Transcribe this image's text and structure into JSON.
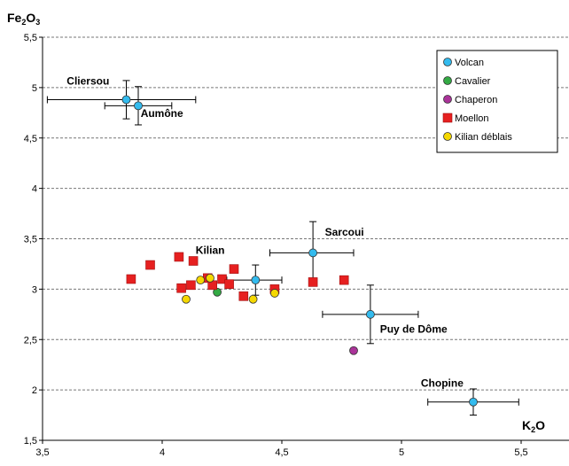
{
  "chart_data": {
    "type": "scatter",
    "xlabel": "K2O",
    "ylabel": "Fe2O3",
    "xlabel_main": "K",
    "xlabel_sub": "2",
    "xlabel_end": "O",
    "ylabel_main": "Fe",
    "ylabel_sub1": "2",
    "ylabel_mid": "O",
    "ylabel_sub2": "3",
    "xlim": [
      3.5,
      5.7
    ],
    "ylim": [
      1.5,
      5.5
    ],
    "xticks": [
      "3,5",
      "4",
      "4,5",
      "5",
      "5,5"
    ],
    "xtick_values": [
      3.5,
      4,
      4.5,
      5,
      5.5
    ],
    "yticks": [
      "1,5",
      "2",
      "2,5",
      "3",
      "3,5",
      "4",
      "4,5",
      "5",
      "5,5"
    ],
    "ytick_values": [
      1.5,
      2,
      2.5,
      3,
      3.5,
      4,
      4.5,
      5,
      5.5
    ],
    "grid": "horizontal dashed",
    "legend_position": "top-right",
    "series": [
      {
        "name": "Volcan",
        "marker": "circle",
        "color": "#33bbee",
        "points": [
          {
            "x": 3.85,
            "y": 4.88,
            "xerr": [
              3.52,
              4.14
            ],
            "yerr": [
              4.69,
              5.07
            ]
          },
          {
            "x": 3.9,
            "y": 4.82,
            "xerr": [
              3.76,
              4.04
            ],
            "yerr": [
              4.63,
              5.01
            ]
          },
          {
            "x": 4.63,
            "y": 3.36,
            "xerr": [
              4.45,
              4.8
            ],
            "yerr": [
              3.06,
              3.67
            ]
          },
          {
            "x": 4.39,
            "y": 3.09,
            "xerr": [
              4.27,
              4.5
            ],
            "yerr": [
              2.94,
              3.24
            ]
          },
          {
            "x": 4.87,
            "y": 2.75,
            "xerr": [
              4.67,
              5.07
            ],
            "yerr": [
              2.46,
              3.04
            ]
          },
          {
            "x": 5.3,
            "y": 1.88,
            "xerr": [
              5.11,
              5.49
            ],
            "yerr": [
              1.75,
              2.01
            ]
          }
        ]
      },
      {
        "name": "Cavalier",
        "marker": "circle",
        "color": "#33aa44",
        "points": [
          {
            "x": 4.23,
            "y": 2.97
          }
        ]
      },
      {
        "name": "Chaperon",
        "marker": "circle",
        "color": "#aa3399",
        "points": [
          {
            "x": 4.8,
            "y": 2.39
          }
        ]
      },
      {
        "name": "Moellon",
        "marker": "square",
        "color": "#e62020",
        "points": [
          {
            "x": 3.87,
            "y": 3.1
          },
          {
            "x": 3.95,
            "y": 3.24
          },
          {
            "x": 4.07,
            "y": 3.32
          },
          {
            "x": 4.13,
            "y": 3.28
          },
          {
            "x": 4.08,
            "y": 3.01
          },
          {
            "x": 4.12,
            "y": 3.04
          },
          {
            "x": 4.19,
            "y": 3.11
          },
          {
            "x": 4.21,
            "y": 3.04
          },
          {
            "x": 4.25,
            "y": 3.1
          },
          {
            "x": 4.28,
            "y": 3.05
          },
          {
            "x": 4.3,
            "y": 3.2
          },
          {
            "x": 4.34,
            "y": 2.93
          },
          {
            "x": 4.47,
            "y": 3.0
          },
          {
            "x": 4.63,
            "y": 3.07
          },
          {
            "x": 4.76,
            "y": 3.09
          }
        ]
      },
      {
        "name": "Kilian déblais",
        "marker": "circle",
        "color": "#f5d800",
        "points": [
          {
            "x": 4.1,
            "y": 2.9
          },
          {
            "x": 4.16,
            "y": 3.09
          },
          {
            "x": 4.2,
            "y": 3.11
          },
          {
            "x": 4.38,
            "y": 2.9
          },
          {
            "x": 4.47,
            "y": 2.96
          }
        ]
      }
    ],
    "annotations": [
      {
        "text": "Cliersou",
        "x": 3.69,
        "y": 5.03,
        "anchor": "middle"
      },
      {
        "text": "Aumône",
        "x": 3.91,
        "y": 4.71,
        "anchor": "start"
      },
      {
        "text": "Kilian",
        "x": 4.14,
        "y": 3.35,
        "anchor": "start"
      },
      {
        "text": "Sarcoui",
        "x": 4.68,
        "y": 3.53,
        "anchor": "start"
      },
      {
        "text": "Puy de Dôme",
        "x": 4.91,
        "y": 2.57,
        "anchor": "start"
      },
      {
        "text": "Chopine",
        "x": 5.17,
        "y": 2.03,
        "anchor": "middle"
      }
    ]
  }
}
